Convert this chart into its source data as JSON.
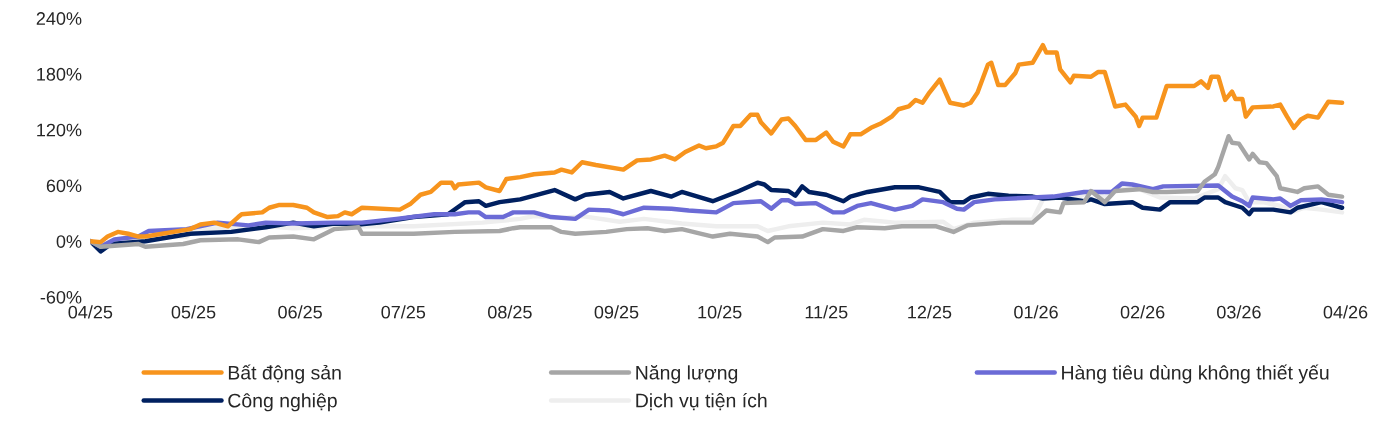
{
  "chart_data": {
    "type": "line",
    "xlim": [
      "2025-04-01",
      "2026-04-01"
    ],
    "xticks": [
      {
        "value": "2025-04-01",
        "label": "04/25"
      },
      {
        "value": "2025-05-01",
        "label": "05/25"
      },
      {
        "value": "2025-06-01",
        "label": "06/25"
      },
      {
        "value": "2025-07-01",
        "label": "07/25"
      },
      {
        "value": "2025-08-01",
        "label": "08/25"
      },
      {
        "value": "2025-09-01",
        "label": "09/25"
      },
      {
        "value": "2025-10-01",
        "label": "10/25"
      },
      {
        "value": "2025-11-01",
        "label": "11/25"
      },
      {
        "value": "2025-12-01",
        "label": "12/25"
      },
      {
        "value": "2026-01-01",
        "label": "01/26"
      },
      {
        "value": "2026-02-01",
        "label": "02/26"
      },
      {
        "value": "2026-03-01",
        "label": "03/26"
      },
      {
        "value": "2026-04-01",
        "label": "04/26"
      }
    ],
    "ylim": [
      -60,
      240
    ],
    "yticks": [
      {
        "value": -60,
        "label": "-60%"
      },
      {
        "value": 0,
        "label": "0%"
      },
      {
        "value": 60,
        "label": "60%"
      },
      {
        "value": 120,
        "label": "120%"
      },
      {
        "value": 180,
        "label": "180%"
      },
      {
        "value": 240,
        "label": "240%"
      }
    ],
    "grid": false,
    "legend": "bottom",
    "marker": "none",
    "line_style": "solid",
    "series": [
      {
        "name": "Bất động sản",
        "color": "#f7941d",
        "x": [
          "2025-04-01",
          "2025-04-04",
          "2025-04-06",
          "2025-04-09",
          "2025-04-12",
          "2025-04-15",
          "2025-04-17",
          "2025-04-30",
          "2025-05-03",
          "2025-05-07",
          "2025-05-11",
          "2025-05-14",
          "2025-05-15",
          "2025-05-21",
          "2025-05-23",
          "2025-05-26",
          "2025-05-30",
          "2025-06-03",
          "2025-06-05",
          "2025-06-09",
          "2025-06-12",
          "2025-06-14",
          "2025-06-16",
          "2025-06-19",
          "2025-06-30",
          "2025-07-03",
          "2025-07-06",
          "2025-07-09",
          "2025-07-12",
          "2025-07-15",
          "2025-07-16",
          "2025-07-17",
          "2025-07-23",
          "2025-07-25",
          "2025-07-29",
          "2025-07-31",
          "2025-08-04",
          "2025-08-08",
          "2025-08-14",
          "2025-08-16",
          "2025-08-19",
          "2025-08-22",
          "2025-08-26",
          "2025-09-03",
          "2025-09-07",
          "2025-09-11",
          "2025-09-15",
          "2025-09-18",
          "2025-09-21",
          "2025-09-25",
          "2025-09-27",
          "2025-09-30",
          "2025-10-02",
          "2025-10-05",
          "2025-10-07",
          "2025-10-10",
          "2025-10-12",
          "2025-10-13",
          "2025-10-16",
          "2025-10-19",
          "2025-10-21",
          "2025-10-23",
          "2025-10-26",
          "2025-10-29",
          "2025-11-01",
          "2025-11-03",
          "2025-11-06",
          "2025-11-08",
          "2025-11-11",
          "2025-11-14",
          "2025-11-17",
          "2025-11-20",
          "2025-11-22",
          "2025-11-25",
          "2025-11-27",
          "2025-11-29",
          "2025-12-01",
          "2025-12-04",
          "2025-12-07",
          "2025-12-11",
          "2025-12-13",
          "2025-12-15",
          "2025-12-18",
          "2025-12-19",
          "2025-12-21",
          "2025-12-23",
          "2025-12-26",
          "2025-12-27",
          "2025-12-31",
          "2026-01-03",
          "2026-01-04",
          "2026-01-07",
          "2026-01-08",
          "2026-01-11",
          "2026-01-12",
          "2026-01-17",
          "2026-01-19",
          "2026-01-21",
          "2026-01-24",
          "2026-01-27",
          "2026-01-30",
          "2026-01-31",
          "2026-02-01",
          "2026-02-05",
          "2026-02-08",
          "2026-02-16",
          "2026-02-18",
          "2026-02-20",
          "2026-02-21",
          "2026-02-23",
          "2026-02-25",
          "2026-02-27",
          "2026-02-28",
          "2026-03-02",
          "2026-03-03",
          "2026-03-05",
          "2026-03-11",
          "2026-03-13",
          "2026-03-15",
          "2026-03-17",
          "2026-03-19",
          "2026-03-21",
          "2026-03-24",
          "2026-03-27",
          "2026-03-31"
        ],
        "values": [
          0,
          -1,
          5,
          10,
          8,
          5,
          5,
          13,
          18,
          20,
          16,
          26,
          29,
          31,
          36,
          39,
          39,
          36,
          31,
          26,
          27,
          31,
          29,
          36,
          34,
          40,
          50,
          53,
          63,
          63,
          57,
          61,
          63,
          58,
          54,
          67,
          69,
          72,
          74,
          77,
          74,
          85,
          82,
          77,
          87,
          88,
          92,
          88,
          96,
          103,
          100,
          102,
          106,
          124,
          124,
          136,
          136,
          128,
          116,
          131,
          132,
          124,
          109,
          109,
          117,
          107,
          102,
          115,
          115,
          122,
          127,
          134,
          142,
          145,
          152,
          149,
          160,
          174,
          149,
          146,
          149,
          160,
          190,
          192,
          168,
          168,
          181,
          190,
          192,
          211,
          203,
          203,
          185,
          171,
          178,
          177,
          182,
          182,
          145,
          147,
          134,
          124,
          133,
          133,
          167,
          167,
          172,
          165,
          177,
          177,
          152,
          161,
          153,
          153,
          134,
          144,
          145,
          147,
          134,
          122,
          131,
          135,
          133,
          150,
          149
        ]
      },
      {
        "name": "Năng lượng",
        "color": "#a6a6a6",
        "x": [
          "2025-04-01",
          "2025-04-04",
          "2025-04-15",
          "2025-04-17",
          "2025-04-28",
          "2025-05-03",
          "2025-05-14",
          "2025-05-20",
          "2025-05-23",
          "2025-05-30",
          "2025-06-05",
          "2025-06-11",
          "2025-06-18",
          "2025-06-19",
          "2025-07-04",
          "2025-07-16",
          "2025-07-29",
          "2025-08-02",
          "2025-08-04",
          "2025-08-13",
          "2025-08-16",
          "2025-08-20",
          "2025-08-29",
          "2025-09-04",
          "2025-09-10",
          "2025-09-15",
          "2025-09-20",
          "2025-09-29",
          "2025-10-04",
          "2025-10-12",
          "2025-10-15",
          "2025-10-17",
          "2025-10-25",
          "2025-10-31",
          "2025-11-06",
          "2025-11-10",
          "2025-11-18",
          "2025-11-23",
          "2025-12-03",
          "2025-12-08",
          "2025-12-12",
          "2025-12-22",
          "2025-12-31",
          "2026-01-04",
          "2026-01-08",
          "2026-01-09",
          "2026-01-15",
          "2026-01-17",
          "2026-01-21",
          "2026-01-24",
          "2026-01-31",
          "2026-02-04",
          "2026-02-08",
          "2026-02-17",
          "2026-02-19",
          "2026-02-22",
          "2026-02-23",
          "2026-02-26",
          "2026-02-27",
          "2026-03-01",
          "2026-03-04",
          "2026-03-05",
          "2026-03-07",
          "2026-03-09",
          "2026-03-12",
          "2026-03-13",
          "2026-03-18",
          "2026-03-20",
          "2026-03-24",
          "2026-03-27",
          "2026-03-31"
        ],
        "values": [
          0,
          -6,
          -3,
          -6,
          -3,
          1,
          2,
          -1,
          4,
          5,
          2,
          13,
          15,
          8,
          8,
          10,
          11,
          14,
          15,
          15,
          10,
          8,
          10,
          13,
          14,
          11,
          13,
          5,
          8,
          5,
          -1,
          4,
          5,
          13,
          11,
          15,
          14,
          16,
          16,
          10,
          17,
          20,
          20,
          33,
          31,
          41,
          42,
          54,
          42,
          54,
          56,
          53,
          53,
          54,
          64,
          72,
          80,
          113,
          106,
          105,
          88,
          94,
          85,
          84,
          70,
          57,
          53,
          57,
          59,
          50,
          48
        ]
      },
      {
        "name": "Hàng tiêu dùng không thiết yếu",
        "color": "#6b6bd6",
        "x": [
          "2025-04-01",
          "2025-04-04",
          "2025-04-08",
          "2025-04-15",
          "2025-04-18",
          "2025-04-29",
          "2025-05-08",
          "2025-05-17",
          "2025-05-22",
          "2025-05-30",
          "2025-06-11",
          "2025-06-19",
          "2025-06-29",
          "2025-07-10",
          "2025-07-16",
          "2025-07-20",
          "2025-07-23",
          "2025-07-25",
          "2025-07-30",
          "2025-08-02",
          "2025-08-08",
          "2025-08-13",
          "2025-08-20",
          "2025-08-24",
          "2025-08-30",
          "2025-09-03",
          "2025-09-09",
          "2025-09-17",
          "2025-09-22",
          "2025-09-30",
          "2025-10-05",
          "2025-10-13",
          "2025-10-16",
          "2025-10-19",
          "2025-10-21",
          "2025-10-23",
          "2025-10-29",
          "2025-11-03",
          "2025-11-06",
          "2025-11-10",
          "2025-11-14",
          "2025-11-21",
          "2025-11-26",
          "2025-11-29",
          "2025-12-05",
          "2025-12-09",
          "2025-12-11",
          "2025-12-14",
          "2025-12-20",
          "2025-12-31",
          "2026-01-06",
          "2026-01-15",
          "2026-01-23",
          "2026-01-26",
          "2026-01-29",
          "2026-02-04",
          "2026-02-07",
          "2026-02-23",
          "2026-02-27",
          "2026-03-02",
          "2026-03-04",
          "2026-03-05",
          "2026-03-11",
          "2026-03-13",
          "2026-03-16",
          "2026-03-19",
          "2026-03-25",
          "2026-03-31"
        ],
        "values": [
          0,
          -6,
          2,
          5,
          11,
          13,
          20,
          17,
          20,
          19,
          20,
          20,
          24,
          29,
          29,
          31,
          31,
          26,
          26,
          31,
          31,
          26,
          24,
          34,
          33,
          29,
          36,
          35,
          33,
          31,
          41,
          43,
          35,
          44,
          44,
          40,
          41,
          31,
          31,
          38,
          41,
          34,
          38,
          45,
          42,
          35,
          34,
          42,
          45,
          47,
          48,
          53,
          53,
          62,
          61,
          56,
          59,
          60,
          48,
          43,
          38,
          47,
          45,
          46,
          38,
          44,
          45,
          42
        ]
      },
      {
        "name": "Công nghiệp",
        "color": "#002060",
        "x": [
          "2025-04-01",
          "2025-04-04",
          "2025-04-07",
          "2025-04-17",
          "2025-04-30",
          "2025-05-12",
          "2025-05-22",
          "2025-05-30",
          "2025-06-05",
          "2025-06-11",
          "2025-06-18",
          "2025-06-24",
          "2025-07-04",
          "2025-07-14",
          "2025-07-19",
          "2025-07-23",
          "2025-07-25",
          "2025-07-29",
          "2025-08-04",
          "2025-08-14",
          "2025-08-20",
          "2025-08-23",
          "2025-08-30",
          "2025-09-03",
          "2025-09-11",
          "2025-09-17",
          "2025-09-20",
          "2025-09-29",
          "2025-10-06",
          "2025-10-12",
          "2025-10-14",
          "2025-10-16",
          "2025-10-21",
          "2025-10-23",
          "2025-10-25",
          "2025-10-27",
          "2025-11-01",
          "2025-11-06",
          "2025-11-08",
          "2025-11-13",
          "2025-11-21",
          "2025-11-28",
          "2025-12-04",
          "2025-12-07",
          "2025-12-11",
          "2025-12-13",
          "2025-12-18",
          "2025-12-24",
          "2025-12-31",
          "2026-01-03",
          "2026-01-08",
          "2026-01-15",
          "2026-01-17",
          "2026-01-21",
          "2026-01-29",
          "2026-02-01",
          "2026-02-06",
          "2026-02-09",
          "2026-02-17",
          "2026-02-19",
          "2026-02-23",
          "2026-02-25",
          "2026-03-02",
          "2026-03-04",
          "2026-03-05",
          "2026-03-11",
          "2026-03-16",
          "2026-03-18",
          "2026-03-25",
          "2026-03-31"
        ],
        "values": [
          0,
          -11,
          -3,
          0,
          8,
          10,
          15,
          20,
          16,
          19,
          18,
          20,
          26,
          29,
          42,
          43,
          38,
          42,
          45,
          55,
          45,
          50,
          53,
          46,
          54,
          48,
          53,
          43,
          53,
          63,
          61,
          55,
          54,
          49,
          59,
          53,
          50,
          43,
          48,
          53,
          58,
          58,
          53,
          42,
          42,
          47,
          51,
          49,
          48,
          46,
          47,
          43,
          45,
          40,
          42,
          36,
          34,
          42,
          42,
          47,
          47,
          42,
          36,
          29,
          34,
          34,
          31,
          36,
          42,
          36
        ]
      },
      {
        "name": "Dịch vụ tiện ích",
        "color": "#eeeeee",
        "x": [
          "2025-04-01",
          "2025-04-04",
          "2025-04-08",
          "2025-04-17",
          "2025-04-29",
          "2025-05-02",
          "2025-05-22",
          "2025-05-30",
          "2025-06-15",
          "2025-06-21",
          "2025-07-04",
          "2025-07-24",
          "2025-08-04",
          "2025-08-08",
          "2025-08-16",
          "2025-08-22",
          "2025-09-02",
          "2025-09-09",
          "2025-09-20",
          "2025-09-30",
          "2025-10-12",
          "2025-10-15",
          "2025-10-21",
          "2025-10-31",
          "2025-11-08",
          "2025-11-12",
          "2025-11-21",
          "2025-12-05",
          "2025-12-08",
          "2025-12-14",
          "2025-12-25",
          "2025-12-31",
          "2026-01-03",
          "2026-01-08",
          "2026-01-09",
          "2026-01-13",
          "2026-01-17",
          "2026-01-21",
          "2026-01-25",
          "2026-01-31",
          "2026-02-06",
          "2026-02-16",
          "2026-02-23",
          "2026-02-25",
          "2026-02-28",
          "2026-03-02",
          "2026-03-04",
          "2026-03-08",
          "2026-03-13",
          "2026-03-17",
          "2026-03-20",
          "2026-03-25",
          "2026-03-31"
        ],
        "values": [
          0,
          -5,
          1,
          5,
          5,
          13,
          16,
          14,
          16,
          16,
          16,
          20,
          24,
          27,
          25,
          27,
          21,
          24,
          19,
          16,
          16,
          11,
          16,
          20,
          18,
          23,
          20,
          21,
          13,
          20,
          23,
          23,
          45,
          48,
          51,
          47,
          54,
          47,
          58,
          56,
          47,
          46,
          56,
          70,
          57,
          55,
          42,
          42,
          38,
          32,
          36,
          34,
          31
        ]
      }
    ]
  }
}
